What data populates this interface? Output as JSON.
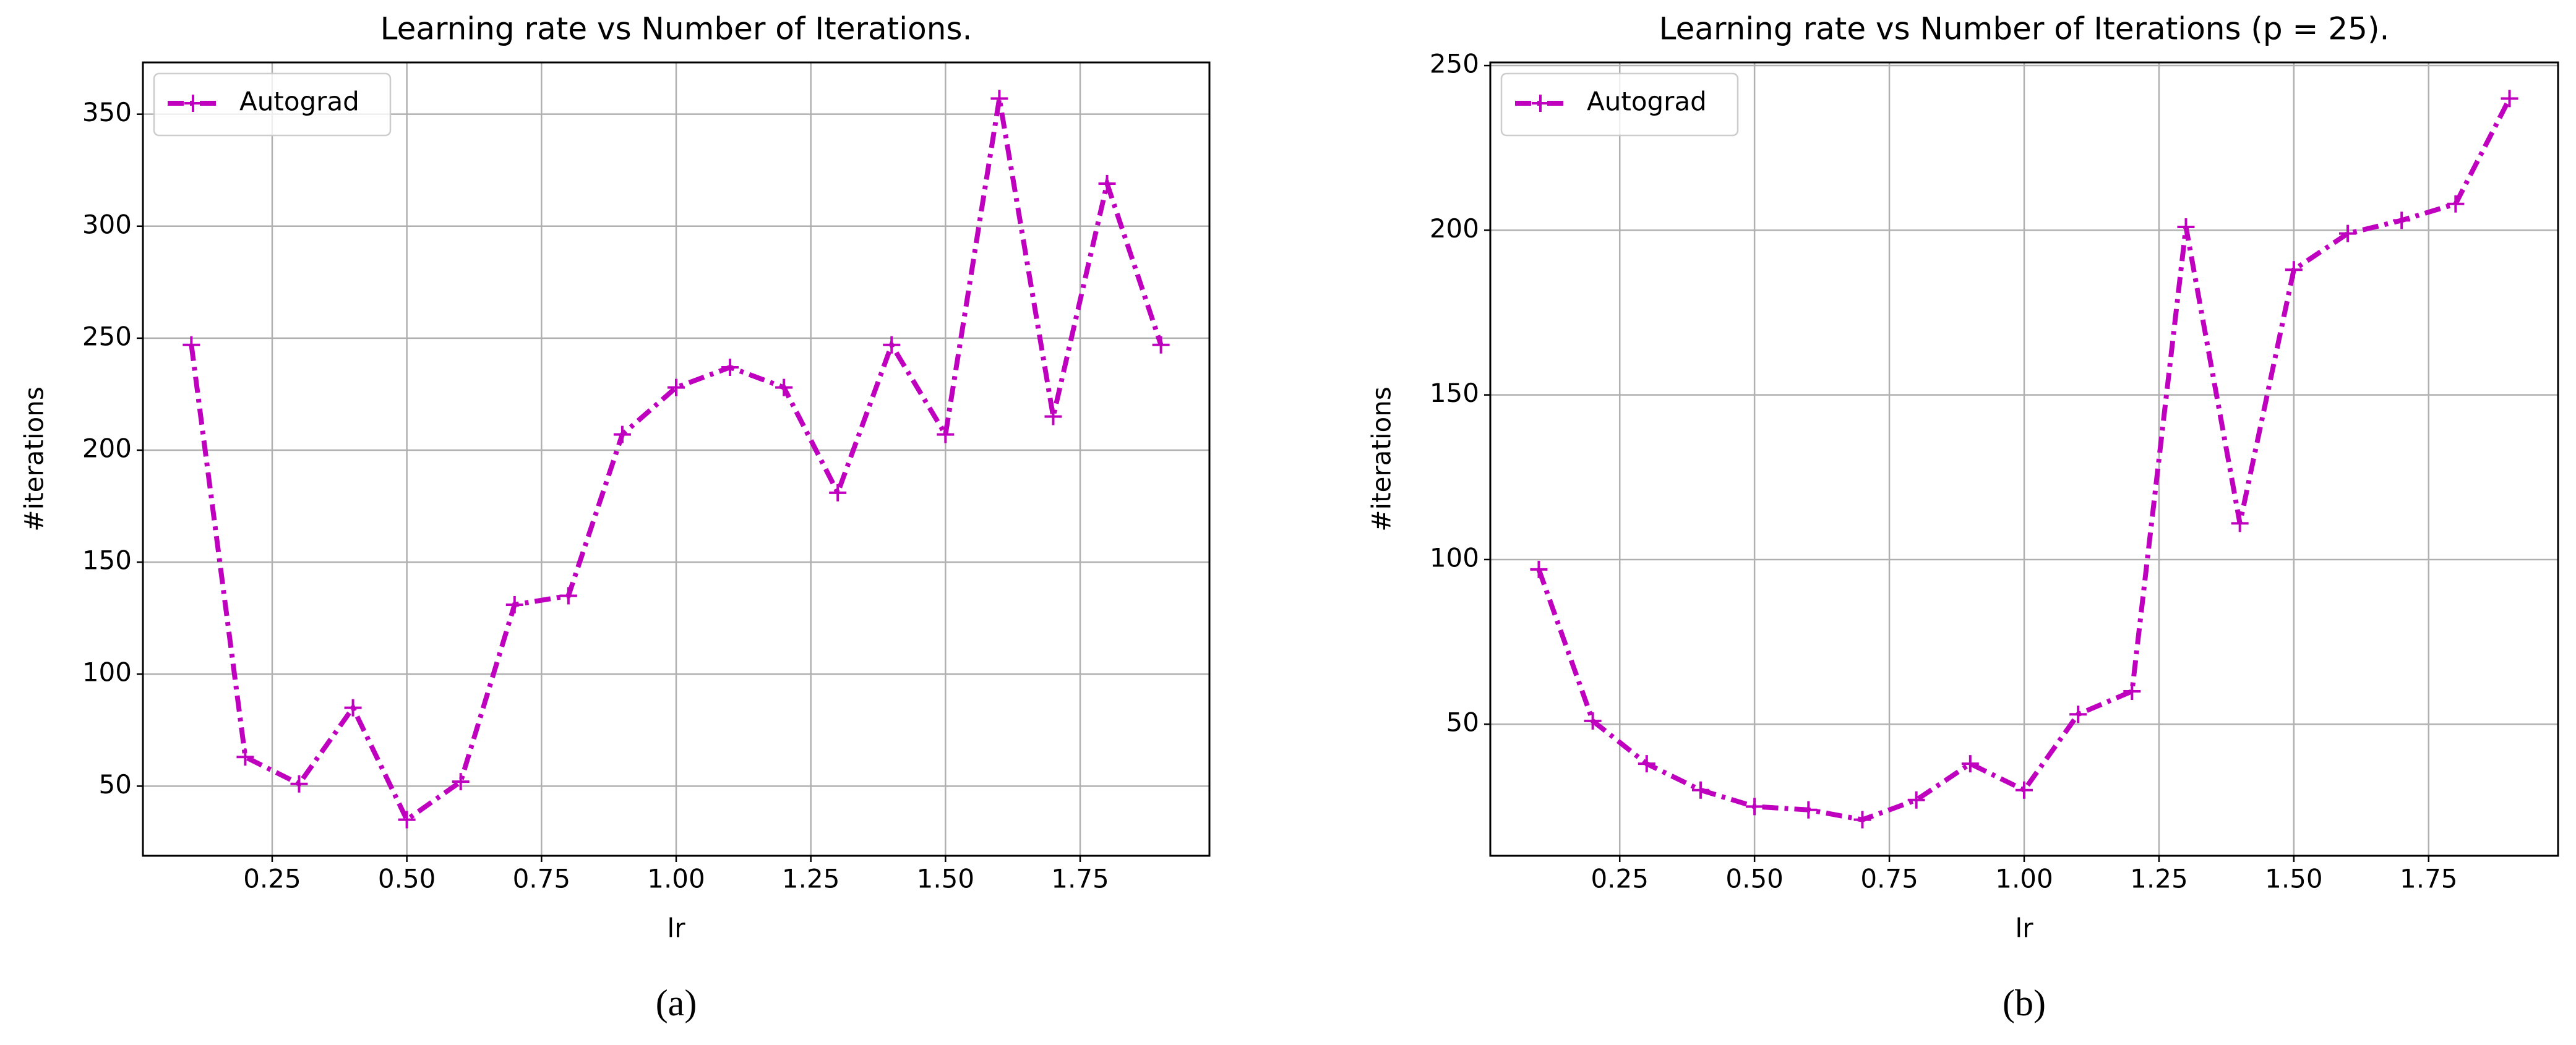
{
  "chart_data": [
    {
      "type": "line",
      "title": "Learning rate vs Number of Iterations.",
      "caption": "(a)",
      "xlabel": "lr",
      "ylabel": "#iterations",
      "x": [
        0.1,
        0.2,
        0.3,
        0.4,
        0.5,
        0.6,
        0.7,
        0.8,
        0.9,
        1.0,
        1.1,
        1.2,
        1.3,
        1.4,
        1.5,
        1.6,
        1.7,
        1.8,
        1.9
      ],
      "series": [
        {
          "name": "Autograd",
          "color": "#bf00bf",
          "values": [
            247,
            63,
            51,
            85,
            35,
            52,
            131,
            135,
            207,
            228,
            237,
            228,
            181,
            247,
            207,
            357,
            215,
            319,
            247
          ]
        }
      ],
      "xlim": [
        0.01,
        1.99
      ],
      "ylim": [
        18.9,
        373.1
      ],
      "xticks": [
        0.25,
        {
          "value": 0.5,
          "label": "0.50"
        },
        0.75,
        {
          "value": 1.0,
          "label": "1.00"
        },
        1.25,
        {
          "value": 1.5,
          "label": "1.50"
        },
        1.75
      ],
      "yticks": [
        50,
        100,
        150,
        200,
        250,
        300,
        350
      ],
      "grid": true,
      "legend": "upper left"
    },
    {
      "type": "line",
      "title": "Learning rate vs Number of Iterations (p = 25).",
      "caption": "(b)",
      "xlabel": "lr",
      "ylabel": "#iterations",
      "x": [
        0.1,
        0.2,
        0.3,
        0.4,
        0.5,
        0.6,
        0.7,
        0.8,
        0.9,
        1.0,
        1.1,
        1.2,
        1.3,
        1.4,
        1.5,
        1.6,
        1.7,
        1.8,
        1.9
      ],
      "series": [
        {
          "name": "Autograd",
          "color": "#bf00bf",
          "values": [
            97,
            51,
            38,
            30,
            25,
            24,
            21,
            27,
            38,
            30,
            53,
            60,
            201,
            111,
            188,
            199,
            203,
            208,
            240
          ]
        }
      ],
      "xlim": [
        0.01,
        1.99
      ],
      "ylim": [
        10.05,
        250.95
      ],
      "xticks": [
        0.25,
        {
          "value": 0.5,
          "label": "0.50"
        },
        0.75,
        {
          "value": 1.0,
          "label": "1.00"
        },
        1.25,
        {
          "value": 1.5,
          "label": "1.50"
        },
        1.75
      ],
      "yticks": [
        50,
        100,
        150,
        200,
        250
      ],
      "grid": true,
      "legend": "upper left"
    }
  ]
}
